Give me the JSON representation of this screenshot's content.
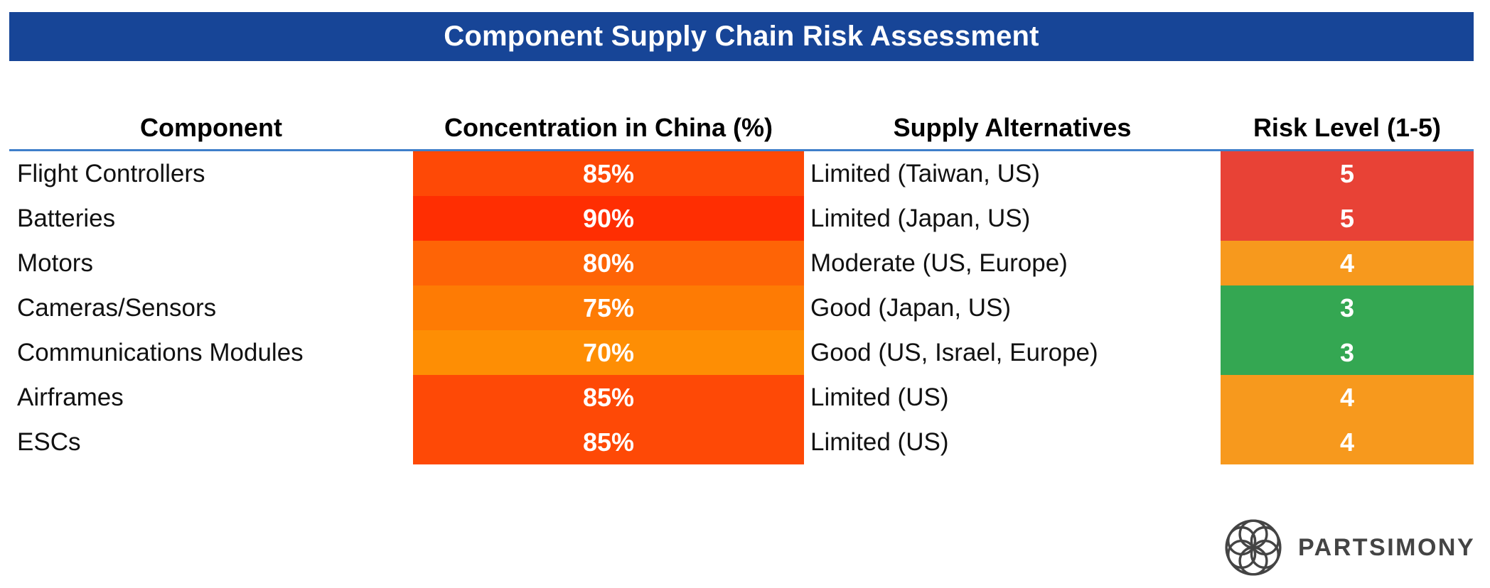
{
  "title": "Component Supply Chain Risk Assessment",
  "brand": "PARTSIMONY",
  "colors": {
    "title_bar": "#174597",
    "header_rule": "#3f7fca"
  },
  "chart_data": {
    "type": "table",
    "title": "Component Supply Chain Risk Assessment",
    "columns": [
      "Component",
      "Concentration in China (%)",
      "Supply Alternatives",
      "Risk Level (1-5)"
    ],
    "rows": [
      {
        "component": "Flight Controllers",
        "concentration": 85,
        "concentration_label": "85%",
        "alternatives": "Limited (Taiwan, US)",
        "risk": 5,
        "risk_label": "5",
        "conc_color": "#fe4906",
        "risk_color": "#e84236"
      },
      {
        "component": "Batteries",
        "concentration": 90,
        "concentration_label": "90%",
        "alternatives": "Limited (Japan, US)",
        "risk": 5,
        "risk_label": "5",
        "conc_color": "#ff2e02",
        "risk_color": "#e84236"
      },
      {
        "component": "Motors",
        "concentration": 80,
        "concentration_label": "80%",
        "alternatives": "Moderate (US, Europe)",
        "risk": 4,
        "risk_label": "4",
        "conc_color": "#fe6406",
        "risk_color": "#f7991d"
      },
      {
        "component": "Cameras/Sensors",
        "concentration": 75,
        "concentration_label": "75%",
        "alternatives": "Good (Japan, US)",
        "risk": 3,
        "risk_label": "3",
        "conc_color": "#fe7b04",
        "risk_color": "#34a752"
      },
      {
        "component": "Communications Modules",
        "concentration": 70,
        "concentration_label": "70%",
        "alternatives": "Good (US, Israel, Europe)",
        "risk": 3,
        "risk_label": "3",
        "conc_color": "#fe8e04",
        "risk_color": "#34a752"
      },
      {
        "component": "Airframes",
        "concentration": 85,
        "concentration_label": "85%",
        "alternatives": "Limited (US)",
        "risk": 4,
        "risk_label": "4",
        "conc_color": "#fe4906",
        "risk_color": "#f7991d"
      },
      {
        "component": "ESCs",
        "concentration": 85,
        "concentration_label": "85%",
        "alternatives": "Limited (US)",
        "risk": 4,
        "risk_label": "4",
        "conc_color": "#fe4906",
        "risk_color": "#f7991d"
      }
    ]
  }
}
